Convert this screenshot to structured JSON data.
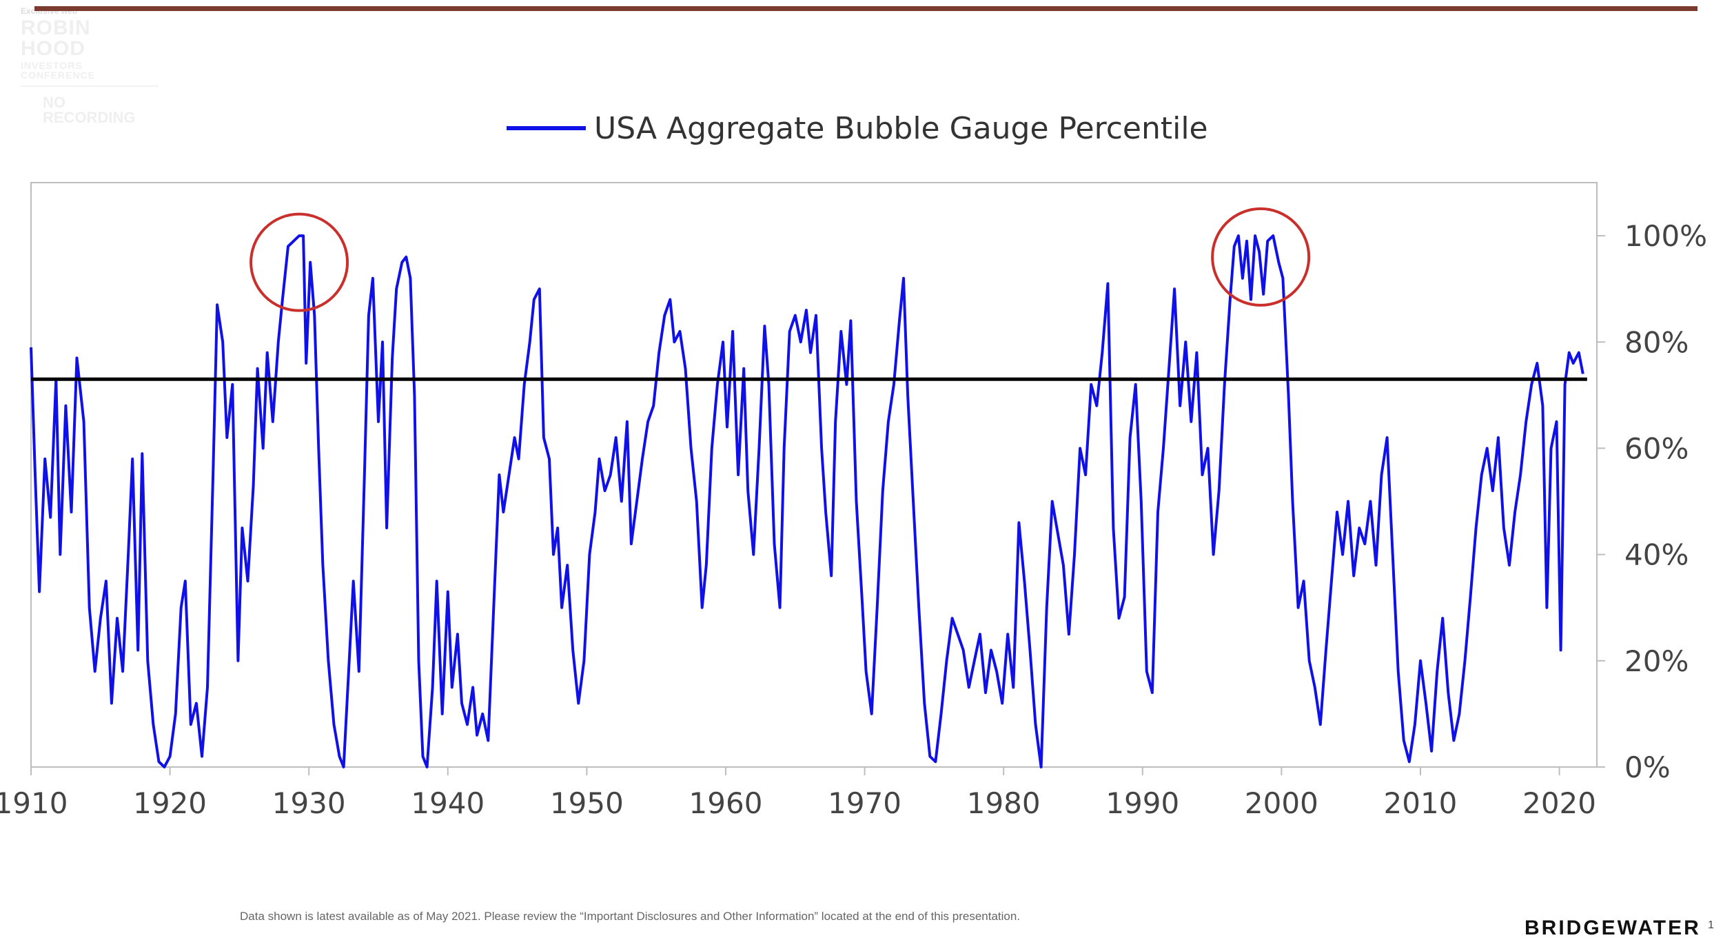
{
  "header": {
    "top_bar_color": "#7a3b2e"
  },
  "watermark": {
    "small_text": "Exclusive web",
    "logo_text": "ROBIN HOOD",
    "logo_subtext": "INVESTORS CONFERENCE",
    "notice": "NO RECORDING"
  },
  "chart_data": {
    "type": "line",
    "title": "",
    "xlabel": "",
    "ylabel": "",
    "legend": [
      "USA Aggregate Bubble Gauge Percentile"
    ],
    "legend_position": "top-center",
    "x_ticks": [
      1910,
      1920,
      1930,
      1940,
      1950,
      1960,
      1970,
      1980,
      1990,
      2000,
      2010,
      2020
    ],
    "x_tick_labels": [
      "1910",
      "1920",
      "1930",
      "1940",
      "1950",
      "1960",
      "1970",
      "1980",
      "1990",
      "2000",
      "2010",
      "2020"
    ],
    "y_ticks": [
      0,
      20,
      40,
      60,
      80,
      100
    ],
    "y_tick_labels": [
      "0%",
      "20%",
      "40%",
      "60%",
      "80%",
      "100%"
    ],
    "xlim": [
      1910,
      2022.7
    ],
    "ylim": [
      0,
      110
    ],
    "y_axis_side": "right",
    "grid": false,
    "series": [
      {
        "name": "USA Aggregate Bubble Gauge Percentile",
        "color": "#1010e8",
        "points": [
          [
            1910,
            79
          ],
          [
            1910.3,
            55
          ],
          [
            1910.6,
            33
          ],
          [
            1911,
            58
          ],
          [
            1911.4,
            47
          ],
          [
            1911.8,
            73
          ],
          [
            1912.1,
            40
          ],
          [
            1912.5,
            68
          ],
          [
            1912.9,
            48
          ],
          [
            1913.3,
            77
          ],
          [
            1913.8,
            65
          ],
          [
            1914.2,
            30
          ],
          [
            1914.6,
            18
          ],
          [
            1915.0,
            28
          ],
          [
            1915.4,
            35
          ],
          [
            1915.8,
            12
          ],
          [
            1916.2,
            28
          ],
          [
            1916.6,
            18
          ],
          [
            1917.0,
            40
          ],
          [
            1917.3,
            58
          ],
          [
            1917.7,
            22
          ],
          [
            1918.0,
            59
          ],
          [
            1918.4,
            20
          ],
          [
            1918.8,
            8
          ],
          [
            1919.2,
            1
          ],
          [
            1919.6,
            0
          ],
          [
            1920.0,
            2
          ],
          [
            1920.4,
            10
          ],
          [
            1920.8,
            30
          ],
          [
            1921.1,
            35
          ],
          [
            1921.5,
            8
          ],
          [
            1921.9,
            12
          ],
          [
            1922.3,
            2
          ],
          [
            1922.7,
            15
          ],
          [
            1923.1,
            55
          ],
          [
            1923.4,
            87
          ],
          [
            1923.8,
            80
          ],
          [
            1924.1,
            62
          ],
          [
            1924.5,
            72
          ],
          [
            1924.9,
            20
          ],
          [
            1925.2,
            45
          ],
          [
            1925.6,
            35
          ],
          [
            1926.0,
            53
          ],
          [
            1926.3,
            75
          ],
          [
            1926.7,
            60
          ],
          [
            1927.0,
            78
          ],
          [
            1927.4,
            65
          ],
          [
            1927.8,
            80
          ],
          [
            1928.1,
            88
          ],
          [
            1928.5,
            98
          ],
          [
            1928.9,
            99
          ],
          [
            1929.3,
            100
          ],
          [
            1929.6,
            100
          ],
          [
            1929.8,
            76
          ],
          [
            1930.1,
            95
          ],
          [
            1930.4,
            85
          ],
          [
            1930.7,
            60
          ],
          [
            1931.0,
            38
          ],
          [
            1931.4,
            20
          ],
          [
            1931.8,
            8
          ],
          [
            1932.2,
            2
          ],
          [
            1932.5,
            0
          ],
          [
            1932.9,
            20
          ],
          [
            1933.2,
            35
          ],
          [
            1933.6,
            18
          ],
          [
            1934.0,
            55
          ],
          [
            1934.3,
            85
          ],
          [
            1934.6,
            92
          ],
          [
            1935.0,
            65
          ],
          [
            1935.3,
            80
          ],
          [
            1935.6,
            45
          ],
          [
            1936.0,
            77
          ],
          [
            1936.3,
            90
          ],
          [
            1936.7,
            95
          ],
          [
            1937.0,
            96
          ],
          [
            1937.3,
            92
          ],
          [
            1937.6,
            70
          ],
          [
            1937.9,
            20
          ],
          [
            1938.2,
            2
          ],
          [
            1938.5,
            0
          ],
          [
            1938.9,
            15
          ],
          [
            1939.2,
            35
          ],
          [
            1939.6,
            10
          ],
          [
            1940.0,
            33
          ],
          [
            1940.3,
            15
          ],
          [
            1940.7,
            25
          ],
          [
            1941.0,
            12
          ],
          [
            1941.4,
            8
          ],
          [
            1941.8,
            15
          ],
          [
            1942.1,
            6
          ],
          [
            1942.5,
            10
          ],
          [
            1942.9,
            5
          ],
          [
            1943.3,
            30
          ],
          [
            1943.7,
            55
          ],
          [
            1944.0,
            48
          ],
          [
            1944.4,
            55
          ],
          [
            1944.8,
            62
          ],
          [
            1945.1,
            58
          ],
          [
            1945.5,
            72
          ],
          [
            1945.9,
            80
          ],
          [
            1946.2,
            88
          ],
          [
            1946.6,
            90
          ],
          [
            1946.9,
            62
          ],
          [
            1947.3,
            58
          ],
          [
            1947.6,
            40
          ],
          [
            1947.9,
            45
          ],
          [
            1948.2,
            30
          ],
          [
            1948.6,
            38
          ],
          [
            1949.0,
            22
          ],
          [
            1949.4,
            12
          ],
          [
            1949.8,
            20
          ],
          [
            1950.2,
            40
          ],
          [
            1950.6,
            48
          ],
          [
            1950.9,
            58
          ],
          [
            1951.3,
            52
          ],
          [
            1951.7,
            55
          ],
          [
            1952.1,
            62
          ],
          [
            1952.5,
            50
          ],
          [
            1952.9,
            65
          ],
          [
            1953.2,
            42
          ],
          [
            1953.6,
            50
          ],
          [
            1954.0,
            58
          ],
          [
            1954.4,
            65
          ],
          [
            1954.8,
            68
          ],
          [
            1955.2,
            78
          ],
          [
            1955.6,
            85
          ],
          [
            1956.0,
            88
          ],
          [
            1956.3,
            80
          ],
          [
            1956.7,
            82
          ],
          [
            1957.1,
            75
          ],
          [
            1957.5,
            60
          ],
          [
            1957.9,
            50
          ],
          [
            1958.3,
            30
          ],
          [
            1958.6,
            38
          ],
          [
            1959.0,
            60
          ],
          [
            1959.4,
            72
          ],
          [
            1959.8,
            80
          ],
          [
            1960.1,
            64
          ],
          [
            1960.5,
            82
          ],
          [
            1960.9,
            55
          ],
          [
            1961.3,
            75
          ],
          [
            1961.6,
            52
          ],
          [
            1962.0,
            40
          ],
          [
            1962.4,
            60
          ],
          [
            1962.8,
            83
          ],
          [
            1963.1,
            72
          ],
          [
            1963.5,
            42
          ],
          [
            1963.9,
            30
          ],
          [
            1964.2,
            60
          ],
          [
            1964.6,
            82
          ],
          [
            1965.0,
            85
          ],
          [
            1965.4,
            80
          ],
          [
            1965.8,
            86
          ],
          [
            1966.1,
            78
          ],
          [
            1966.5,
            85
          ],
          [
            1966.9,
            60
          ],
          [
            1967.2,
            48
          ],
          [
            1967.6,
            36
          ],
          [
            1967.9,
            65
          ],
          [
            1968.3,
            82
          ],
          [
            1968.7,
            72
          ],
          [
            1969.0,
            84
          ],
          [
            1969.4,
            50
          ],
          [
            1969.8,
            32
          ],
          [
            1970.1,
            18
          ],
          [
            1970.5,
            10
          ],
          [
            1970.9,
            30
          ],
          [
            1971.3,
            52
          ],
          [
            1971.7,
            65
          ],
          [
            1972.1,
            72
          ],
          [
            1972.5,
            84
          ],
          [
            1972.8,
            92
          ],
          [
            1973.1,
            70
          ],
          [
            1973.5,
            50
          ],
          [
            1973.9,
            30
          ],
          [
            1974.3,
            12
          ],
          [
            1974.7,
            2
          ],
          [
            1975.1,
            1
          ],
          [
            1975.5,
            10
          ],
          [
            1975.9,
            20
          ],
          [
            1976.3,
            28
          ],
          [
            1976.7,
            25
          ],
          [
            1977.1,
            22
          ],
          [
            1977.5,
            15
          ],
          [
            1977.9,
            20
          ],
          [
            1978.3,
            25
          ],
          [
            1978.7,
            14
          ],
          [
            1979.1,
            22
          ],
          [
            1979.5,
            18
          ],
          [
            1979.9,
            12
          ],
          [
            1980.3,
            25
          ],
          [
            1980.7,
            15
          ],
          [
            1981.1,
            46
          ],
          [
            1981.5,
            35
          ],
          [
            1981.9,
            22
          ],
          [
            1982.3,
            8
          ],
          [
            1982.7,
            0
          ],
          [
            1983.1,
            30
          ],
          [
            1983.5,
            50
          ],
          [
            1983.9,
            44
          ],
          [
            1984.3,
            38
          ],
          [
            1984.7,
            25
          ],
          [
            1985.1,
            40
          ],
          [
            1985.5,
            60
          ],
          [
            1985.9,
            55
          ],
          [
            1986.3,
            72
          ],
          [
            1986.7,
            68
          ],
          [
            1987.1,
            78
          ],
          [
            1987.5,
            91
          ],
          [
            1987.9,
            45
          ],
          [
            1988.3,
            28
          ],
          [
            1988.7,
            32
          ],
          [
            1989.1,
            62
          ],
          [
            1989.5,
            72
          ],
          [
            1989.9,
            50
          ],
          [
            1990.3,
            18
          ],
          [
            1990.7,
            14
          ],
          [
            1991.1,
            48
          ],
          [
            1991.5,
            60
          ],
          [
            1991.9,
            75
          ],
          [
            1992.3,
            90
          ],
          [
            1992.7,
            68
          ],
          [
            1993.1,
            80
          ],
          [
            1993.5,
            65
          ],
          [
            1993.9,
            78
          ],
          [
            1994.3,
            55
          ],
          [
            1994.7,
            60
          ],
          [
            1995.1,
            40
          ],
          [
            1995.5,
            52
          ],
          [
            1995.9,
            72
          ],
          [
            1996.3,
            88
          ],
          [
            1996.6,
            98
          ],
          [
            1996.9,
            100
          ],
          [
            1997.2,
            92
          ],
          [
            1997.5,
            99
          ],
          [
            1997.8,
            88
          ],
          [
            1998.1,
            100
          ],
          [
            1998.4,
            97
          ],
          [
            1998.7,
            89
          ],
          [
            1999.0,
            99
          ],
          [
            1999.4,
            100
          ],
          [
            1999.8,
            95
          ],
          [
            2000.1,
            92
          ],
          [
            2000.5,
            70
          ],
          [
            2000.8,
            50
          ],
          [
            2001.2,
            30
          ],
          [
            2001.6,
            35
          ],
          [
            2002.0,
            20
          ],
          [
            2002.4,
            15
          ],
          [
            2002.8,
            8
          ],
          [
            2003.2,
            22
          ],
          [
            2003.6,
            35
          ],
          [
            2004.0,
            48
          ],
          [
            2004.4,
            40
          ],
          [
            2004.8,
            50
          ],
          [
            2005.2,
            36
          ],
          [
            2005.6,
            45
          ],
          [
            2006.0,
            42
          ],
          [
            2006.4,
            50
          ],
          [
            2006.8,
            38
          ],
          [
            2007.2,
            55
          ],
          [
            2007.6,
            62
          ],
          [
            2008.0,
            40
          ],
          [
            2008.4,
            18
          ],
          [
            2008.8,
            5
          ],
          [
            2009.2,
            1
          ],
          [
            2009.6,
            8
          ],
          [
            2010.0,
            20
          ],
          [
            2010.4,
            12
          ],
          [
            2010.8,
            3
          ],
          [
            2011.2,
            18
          ],
          [
            2011.6,
            28
          ],
          [
            2012.0,
            14
          ],
          [
            2012.4,
            5
          ],
          [
            2012.8,
            10
          ],
          [
            2013.2,
            20
          ],
          [
            2013.6,
            32
          ],
          [
            2014.0,
            45
          ],
          [
            2014.4,
            55
          ],
          [
            2014.8,
            60
          ],
          [
            2015.2,
            52
          ],
          [
            2015.6,
            62
          ],
          [
            2016.0,
            45
          ],
          [
            2016.4,
            38
          ],
          [
            2016.8,
            48
          ],
          [
            2017.2,
            55
          ],
          [
            2017.6,
            65
          ],
          [
            2018.0,
            72
          ],
          [
            2018.4,
            76
          ],
          [
            2018.8,
            68
          ],
          [
            2019.1,
            30
          ],
          [
            2019.4,
            60
          ],
          [
            2019.8,
            65
          ],
          [
            2020.1,
            22
          ],
          [
            2020.4,
            72
          ],
          [
            2020.7,
            78
          ],
          [
            2021.0,
            76
          ],
          [
            2021.4,
            78
          ],
          [
            2021.7,
            74
          ]
        ]
      }
    ],
    "threshold_line": {
      "value": 73,
      "color": "#000000"
    },
    "highlights": [
      {
        "shape": "circle",
        "center_x": 1929.3,
        "center_y": 95,
        "color": "#c9302c"
      },
      {
        "shape": "circle",
        "center_x": 1998.5,
        "center_y": 96,
        "color": "#c9302c"
      }
    ]
  },
  "footer": {
    "disclaimer": "Data shown is latest available as of May 2021. Please review the “Important Disclosures and Other Information” located at the end of this presentation.",
    "brand": "BRIDGEWATER",
    "page_number": "1"
  }
}
